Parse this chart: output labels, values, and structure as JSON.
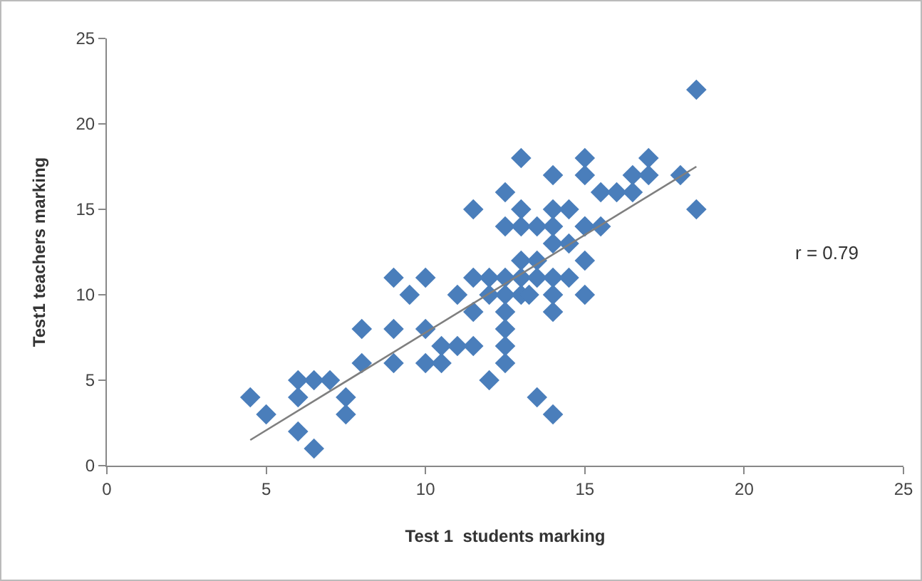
{
  "chart_data": {
    "type": "scatter",
    "xlabel": "Test 1  students marking",
    "ylabel": "Test1 teachers marking",
    "xlim": [
      0,
      25
    ],
    "xticks": [
      0,
      5,
      10,
      15,
      20,
      25
    ],
    "ylim": [
      0,
      25
    ],
    "yticks": [
      0,
      5,
      10,
      15,
      20,
      25
    ],
    "grid": false,
    "marker": "diamond",
    "series": [
      {
        "color": "#4a7ebb",
        "x": [
          4.5,
          5,
          6,
          6,
          6,
          6.5,
          6.5,
          7,
          7.5,
          7.5,
          8,
          8,
          9,
          9,
          9,
          9.5,
          10,
          10,
          10,
          10.5,
          10.5,
          11,
          11,
          11.5,
          11.5,
          11.5,
          11.5,
          12,
          12,
          12,
          12.5,
          12.5,
          12.5,
          12.5,
          12.5,
          12.5,
          12.5,
          12.5,
          13,
          13,
          13,
          13,
          13,
          13,
          13.25,
          13.5,
          13.5,
          13.5,
          13.5,
          14,
          14,
          14,
          14,
          14,
          14,
          14,
          14,
          14.5,
          14.5,
          14.5,
          15,
          15,
          15,
          15,
          15,
          15,
          15.5,
          15.5,
          16,
          16.5,
          16.5,
          17,
          17,
          18,
          18.5,
          18.5
        ],
        "values": [
          4,
          3,
          5,
          4,
          2,
          5,
          1,
          5,
          4,
          3,
          8,
          6,
          11,
          8,
          6,
          10,
          11,
          8,
          6,
          7,
          6,
          10,
          7,
          15,
          11,
          9,
          7,
          11,
          10,
          5,
          14,
          11,
          10,
          9,
          8,
          7,
          6,
          16,
          18,
          15,
          14,
          12,
          11,
          10,
          10,
          14,
          12,
          11,
          4,
          17,
          15,
          14,
          13,
          11,
          10,
          9,
          3,
          15,
          13,
          11,
          18,
          17,
          14,
          12,
          10,
          14,
          16,
          14,
          16,
          17,
          16,
          18,
          17,
          17,
          22,
          15
        ]
      },
      {
        "type": "line",
        "marker": "none",
        "color": "#7f7f7f",
        "x": [
          4.5,
          18.5
        ],
        "values": [
          1.5,
          17.5
        ]
      }
    ],
    "annotations": [
      "r = 0.79"
    ]
  }
}
